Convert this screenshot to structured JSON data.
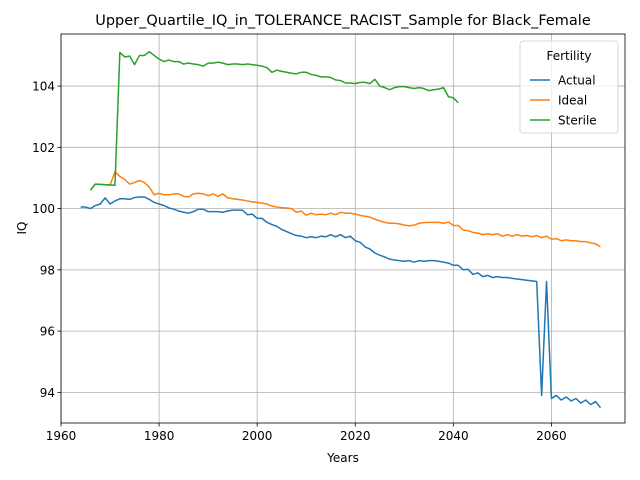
{
  "chart_data": {
    "type": "line",
    "title": "Upper_Quartile_IQ_in_TOLERANCE_RACIST_Sample for Black_Female",
    "xlabel": "Years",
    "ylabel": "IQ",
    "xlim": [
      1960,
      2075
    ],
    "ylim": [
      93.0,
      105.7
    ],
    "xticks": [
      1960,
      1980,
      2000,
      2020,
      2040,
      2060
    ],
    "yticks": [
      94,
      96,
      98,
      100,
      102,
      104
    ],
    "grid": true,
    "legend": {
      "title": "Fertility",
      "placement": "top-right"
    },
    "series": [
      {
        "name": "Actual",
        "color": "#1f77b4",
        "x": [
          1964,
          1965,
          1966,
          1967,
          1968,
          1969,
          1970,
          1971,
          1972,
          1973,
          1974,
          1975,
          1976,
          1977,
          1978,
          1979,
          1980,
          1981,
          1982,
          1983,
          1984,
          1985,
          1986,
          1987,
          1988,
          1989,
          1990,
          1991,
          1992,
          1993,
          1994,
          1995,
          1996,
          1997,
          1998,
          1999,
          2000,
          2001,
          2002,
          2003,
          2004,
          2005,
          2006,
          2007,
          2008,
          2009,
          2010,
          2011,
          2012,
          2013,
          2014,
          2015,
          2016,
          2017,
          2018,
          2019,
          2020,
          2021,
          2022,
          2023,
          2024,
          2025,
          2026,
          2027,
          2028,
          2029,
          2030,
          2031,
          2032,
          2033,
          2034,
          2035,
          2036,
          2037,
          2038,
          2039,
          2040,
          2041,
          2042,
          2043,
          2044,
          2045,
          2046,
          2047,
          2048,
          2049,
          2050,
          2051,
          2052,
          2053,
          2054,
          2055,
          2056,
          2057,
          2058,
          2059,
          2060,
          2061,
          2062,
          2063,
          2064,
          2065,
          2066,
          2067,
          2068,
          2069,
          2070
        ],
        "y": [
          100.05,
          100.05,
          100.0,
          100.1,
          100.15,
          100.35,
          100.15,
          100.25,
          100.32,
          100.32,
          100.3,
          100.36,
          100.38,
          100.38,
          100.3,
          100.2,
          100.15,
          100.1,
          100.02,
          99.98,
          99.92,
          99.88,
          99.85,
          99.9,
          99.98,
          99.98,
          99.9,
          99.9,
          99.9,
          99.88,
          99.92,
          99.95,
          99.95,
          99.95,
          99.8,
          99.82,
          99.68,
          99.68,
          99.55,
          99.48,
          99.42,
          99.32,
          99.25,
          99.18,
          99.12,
          99.1,
          99.05,
          99.08,
          99.05,
          99.1,
          99.08,
          99.15,
          99.08,
          99.15,
          99.05,
          99.1,
          98.95,
          98.9,
          98.75,
          98.68,
          98.55,
          98.48,
          98.42,
          98.35,
          98.32,
          98.3,
          98.28,
          98.3,
          98.25,
          98.3,
          98.28,
          98.3,
          98.3,
          98.28,
          98.25,
          98.22,
          98.15,
          98.15,
          98.0,
          98.02,
          97.85,
          97.9,
          97.78,
          97.82,
          97.75,
          97.78,
          97.75,
          97.75,
          97.72,
          97.7,
          97.68,
          97.66,
          97.64,
          97.62,
          93.9,
          97.62,
          93.8,
          93.9,
          93.75,
          93.85,
          93.72,
          93.8,
          93.65,
          93.75,
          93.6,
          93.7,
          93.5
        ]
      },
      {
        "name": "Ideal",
        "color": "#ff7f0e",
        "x": [
          1966,
          1967,
          1968,
          1969,
          1970,
          1971,
          1972,
          1973,
          1974,
          1975,
          1976,
          1977,
          1978,
          1979,
          1980,
          1981,
          1982,
          1983,
          1984,
          1985,
          1986,
          1987,
          1988,
          1989,
          1990,
          1991,
          1992,
          1993,
          1994,
          1995,
          1996,
          1997,
          1998,
          1999,
          2000,
          2001,
          2002,
          2003,
          2004,
          2005,
          2006,
          2007,
          2008,
          2009,
          2010,
          2011,
          2012,
          2013,
          2014,
          2015,
          2016,
          2017,
          2018,
          2019,
          2020,
          2021,
          2022,
          2023,
          2024,
          2025,
          2026,
          2027,
          2028,
          2029,
          2030,
          2031,
          2032,
          2033,
          2034,
          2035,
          2036,
          2037,
          2038,
          2039,
          2040,
          2041,
          2042,
          2043,
          2044,
          2045,
          2046,
          2047,
          2048,
          2049,
          2050,
          2051,
          2052,
          2053,
          2054,
          2055,
          2056,
          2057,
          2058,
          2059,
          2060,
          2061,
          2062,
          2063,
          2064,
          2065,
          2066,
          2067,
          2068,
          2069,
          2070
        ],
        "y": [
          100.6,
          100.8,
          100.79,
          100.78,
          100.77,
          101.2,
          101.05,
          100.95,
          100.8,
          100.85,
          100.92,
          100.85,
          100.7,
          100.45,
          100.5,
          100.45,
          100.45,
          100.48,
          100.48,
          100.4,
          100.38,
          100.48,
          100.5,
          100.48,
          100.42,
          100.48,
          100.4,
          100.48,
          100.35,
          100.32,
          100.3,
          100.28,
          100.25,
          100.22,
          100.2,
          100.18,
          100.15,
          100.08,
          100.05,
          100.03,
          100.02,
          100.0,
          99.88,
          99.92,
          99.78,
          99.85,
          99.8,
          99.82,
          99.8,
          99.85,
          99.8,
          99.88,
          99.85,
          99.85,
          99.82,
          99.78,
          99.75,
          99.72,
          99.65,
          99.6,
          99.55,
          99.52,
          99.52,
          99.5,
          99.46,
          99.44,
          99.46,
          99.52,
          99.54,
          99.55,
          99.55,
          99.55,
          99.52,
          99.56,
          99.45,
          99.45,
          99.3,
          99.28,
          99.22,
          99.2,
          99.15,
          99.18,
          99.15,
          99.18,
          99.1,
          99.15,
          99.1,
          99.15,
          99.1,
          99.12,
          99.08,
          99.12,
          99.05,
          99.1,
          99.0,
          99.02,
          98.95,
          98.98,
          98.95,
          98.95,
          98.92,
          98.92,
          98.88,
          98.85,
          98.75
        ]
      },
      {
        "name": "Sterile",
        "color": "#2ca02c",
        "x": [
          1966,
          1967,
          1968,
          1969,
          1970,
          1971,
          1972,
          1973,
          1974,
          1975,
          1976,
          1977,
          1978,
          1979,
          1980,
          1981,
          1982,
          1983,
          1984,
          1985,
          1986,
          1987,
          1988,
          1989,
          1990,
          1991,
          1992,
          1993,
          1994,
          1995,
          1996,
          1997,
          1998,
          1999,
          2000,
          2001,
          2002,
          2003,
          2004,
          2005,
          2006,
          2007,
          2008,
          2009,
          2010,
          2011,
          2012,
          2013,
          2014,
          2015,
          2016,
          2017,
          2018,
          2019,
          2020,
          2021,
          2022,
          2023,
          2024,
          2025,
          2026,
          2027,
          2028,
          2029,
          2030,
          2031,
          2032,
          2033,
          2034,
          2035,
          2036,
          2037,
          2038,
          2039,
          2040,
          2041
        ],
        "y": [
          100.6,
          100.8,
          100.79,
          100.78,
          100.77,
          100.76,
          105.1,
          104.95,
          104.98,
          104.7,
          105.0,
          105.0,
          105.12,
          105.0,
          104.88,
          104.8,
          104.85,
          104.8,
          104.8,
          104.72,
          104.75,
          104.72,
          104.7,
          104.65,
          104.75,
          104.75,
          104.78,
          104.75,
          104.7,
          104.72,
          104.72,
          104.7,
          104.72,
          104.7,
          104.68,
          104.65,
          104.6,
          104.45,
          104.52,
          104.48,
          104.45,
          104.42,
          104.4,
          104.45,
          104.45,
          104.38,
          104.35,
          104.3,
          104.3,
          104.28,
          104.2,
          104.18,
          104.1,
          104.1,
          104.08,
          104.12,
          104.12,
          104.08,
          104.22,
          104.0,
          103.95,
          103.88,
          103.95,
          103.98,
          103.98,
          103.95,
          103.92,
          103.95,
          103.92,
          103.85,
          103.88,
          103.9,
          103.95,
          103.65,
          103.62,
          103.45
        ]
      }
    ]
  }
}
